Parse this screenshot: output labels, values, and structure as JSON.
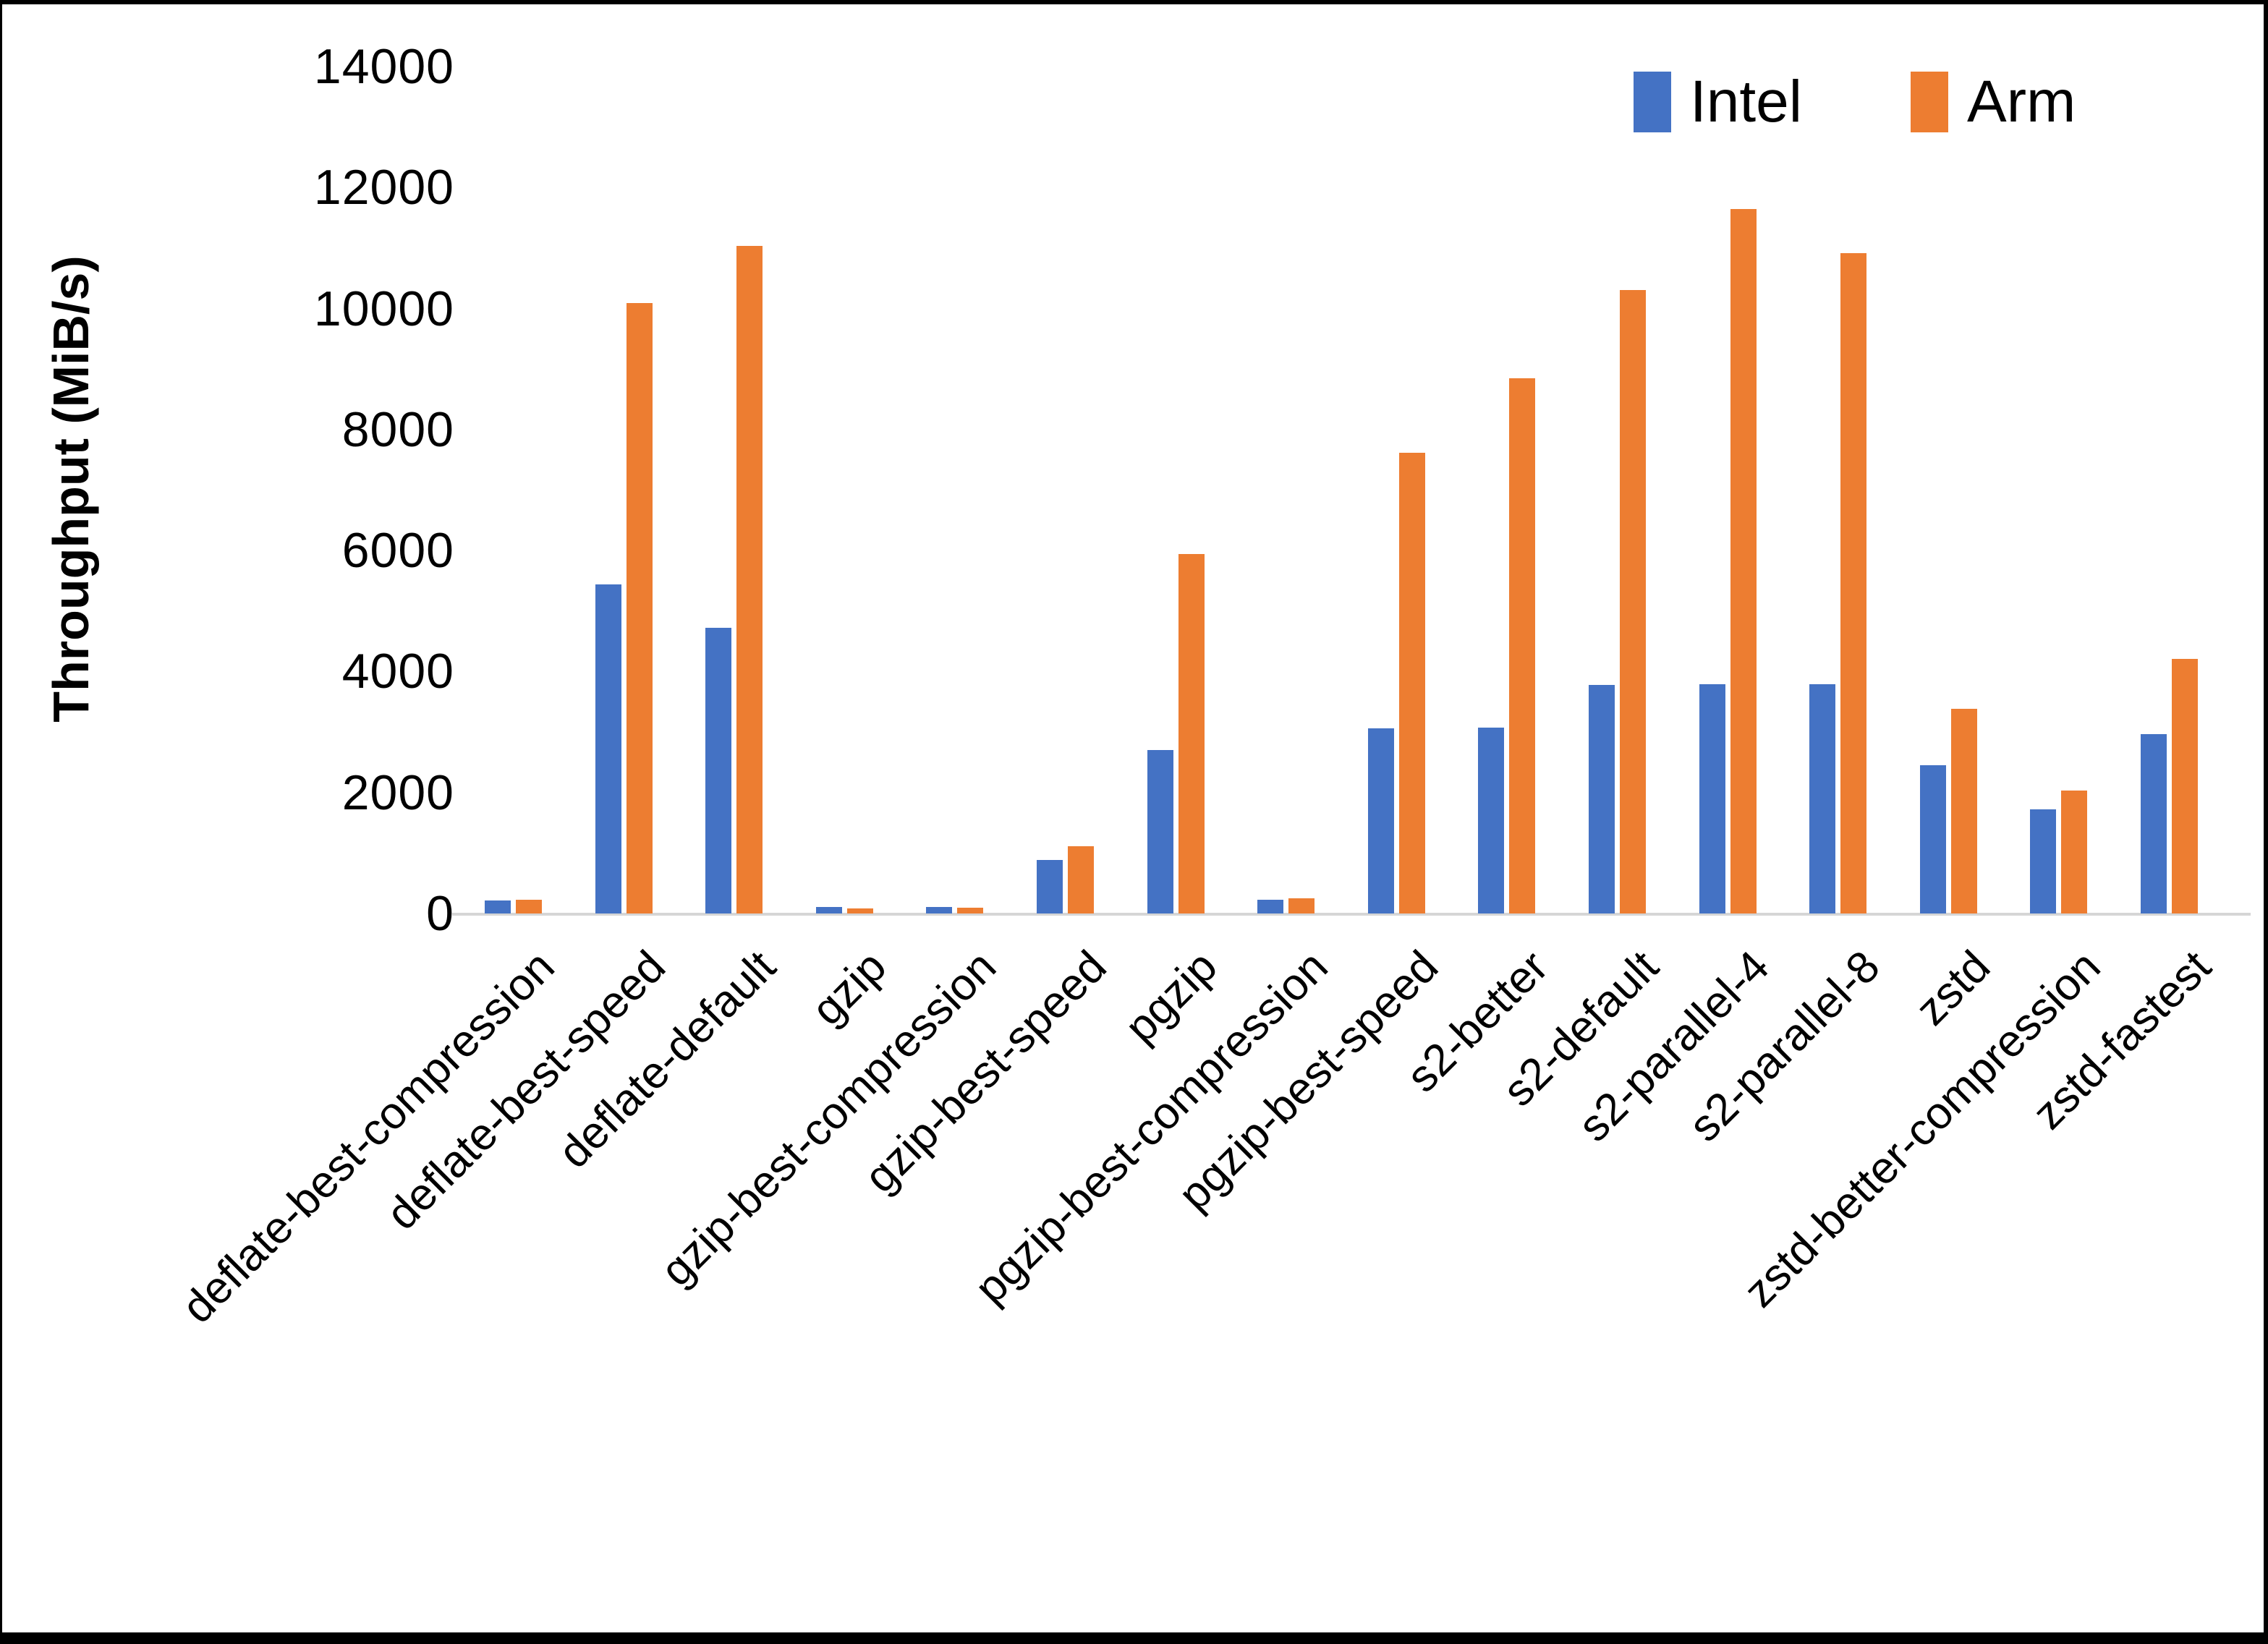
{
  "chart_data": {
    "type": "bar",
    "title": "",
    "xlabel": "",
    "ylabel": "Throughput (MiB/s)",
    "ylim": [
      0,
      14000
    ],
    "ytick_step": 2000,
    "yticks": [
      0,
      2000,
      4000,
      6000,
      8000,
      10000,
      12000,
      14000
    ],
    "grid": false,
    "legend_position": "top-right",
    "categories": [
      "deflate-best-compression",
      "deflate-best-speed",
      "deflate-default",
      "gzip",
      "gzip-best-compression",
      "gzip-best-speed",
      "pgzip",
      "pgzip-best-compression",
      "pgzip-best-speed",
      "s2-better",
      "s2-default",
      "s2-parallel-4",
      "s2-parallel-8",
      "zstd",
      "zstd-better-compression",
      "zstd-fastest"
    ],
    "series": [
      {
        "name": "Intel",
        "color": "#4472c4",
        "values": [
          220,
          5440,
          4720,
          110,
          110,
          890,
          2700,
          230,
          3060,
          3070,
          3780,
          3790,
          3790,
          2450,
          1720,
          2960
        ]
      },
      {
        "name": "Arm",
        "color": "#ed7d31",
        "values": [
          230,
          10090,
          11030,
          80,
          90,
          1110,
          5940,
          250,
          7620,
          8850,
          10300,
          11640,
          10920,
          3380,
          2030,
          4210
        ]
      }
    ],
    "axis_color": "#d6d6d6",
    "tick_label_color": "#000000"
  }
}
